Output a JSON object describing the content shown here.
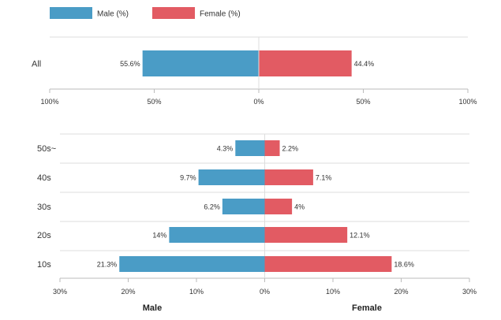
{
  "colors": {
    "male": "#4a9cc6",
    "female": "#e25b63",
    "grid": "#dddddd",
    "axis": "#bbbbbb",
    "text": "#333333"
  },
  "legend": {
    "male_label": "Male (%)",
    "female_label": "Female (%)"
  },
  "chart_data": [
    {
      "type": "bar",
      "orientation": "horizontal-diverging",
      "categories": [
        "All"
      ],
      "series": [
        {
          "name": "Male (%)",
          "values": [
            55.6
          ],
          "labels": [
            "55.6%"
          ]
        },
        {
          "name": "Female (%)",
          "values": [
            44.4
          ],
          "labels": [
            "44.4%"
          ]
        }
      ],
      "xlim": [
        -100,
        100
      ],
      "x_ticks": [
        -100,
        -50,
        0,
        50,
        100
      ],
      "x_tick_labels": [
        "100%",
        "50%",
        "0%",
        "50%",
        "100%"
      ],
      "grid": false,
      "legend_position": "top-left"
    },
    {
      "type": "bar",
      "orientation": "horizontal-diverging",
      "categories": [
        "50s~",
        "40s",
        "30s",
        "20s",
        "10s"
      ],
      "series": [
        {
          "name": "Male",
          "values": [
            4.3,
            9.7,
            6.2,
            14,
            21.3
          ],
          "labels": [
            "4.3%",
            "9.7%",
            "6.2%",
            "14%",
            "21.3%"
          ]
        },
        {
          "name": "Female",
          "values": [
            2.2,
            7.1,
            4,
            12.1,
            18.6
          ],
          "labels": [
            "2.2%",
            "7.1%",
            "4%",
            "12.1%",
            "18.6%"
          ]
        }
      ],
      "xlim": [
        -30,
        30
      ],
      "x_ticks": [
        -30,
        -20,
        -10,
        0,
        10,
        20,
        30
      ],
      "x_tick_labels": [
        "30%",
        "20%",
        "10%",
        "0%",
        "10%",
        "20%",
        "30%"
      ],
      "xlabel_left": "Male",
      "xlabel_right": "Female",
      "grid": true
    }
  ]
}
